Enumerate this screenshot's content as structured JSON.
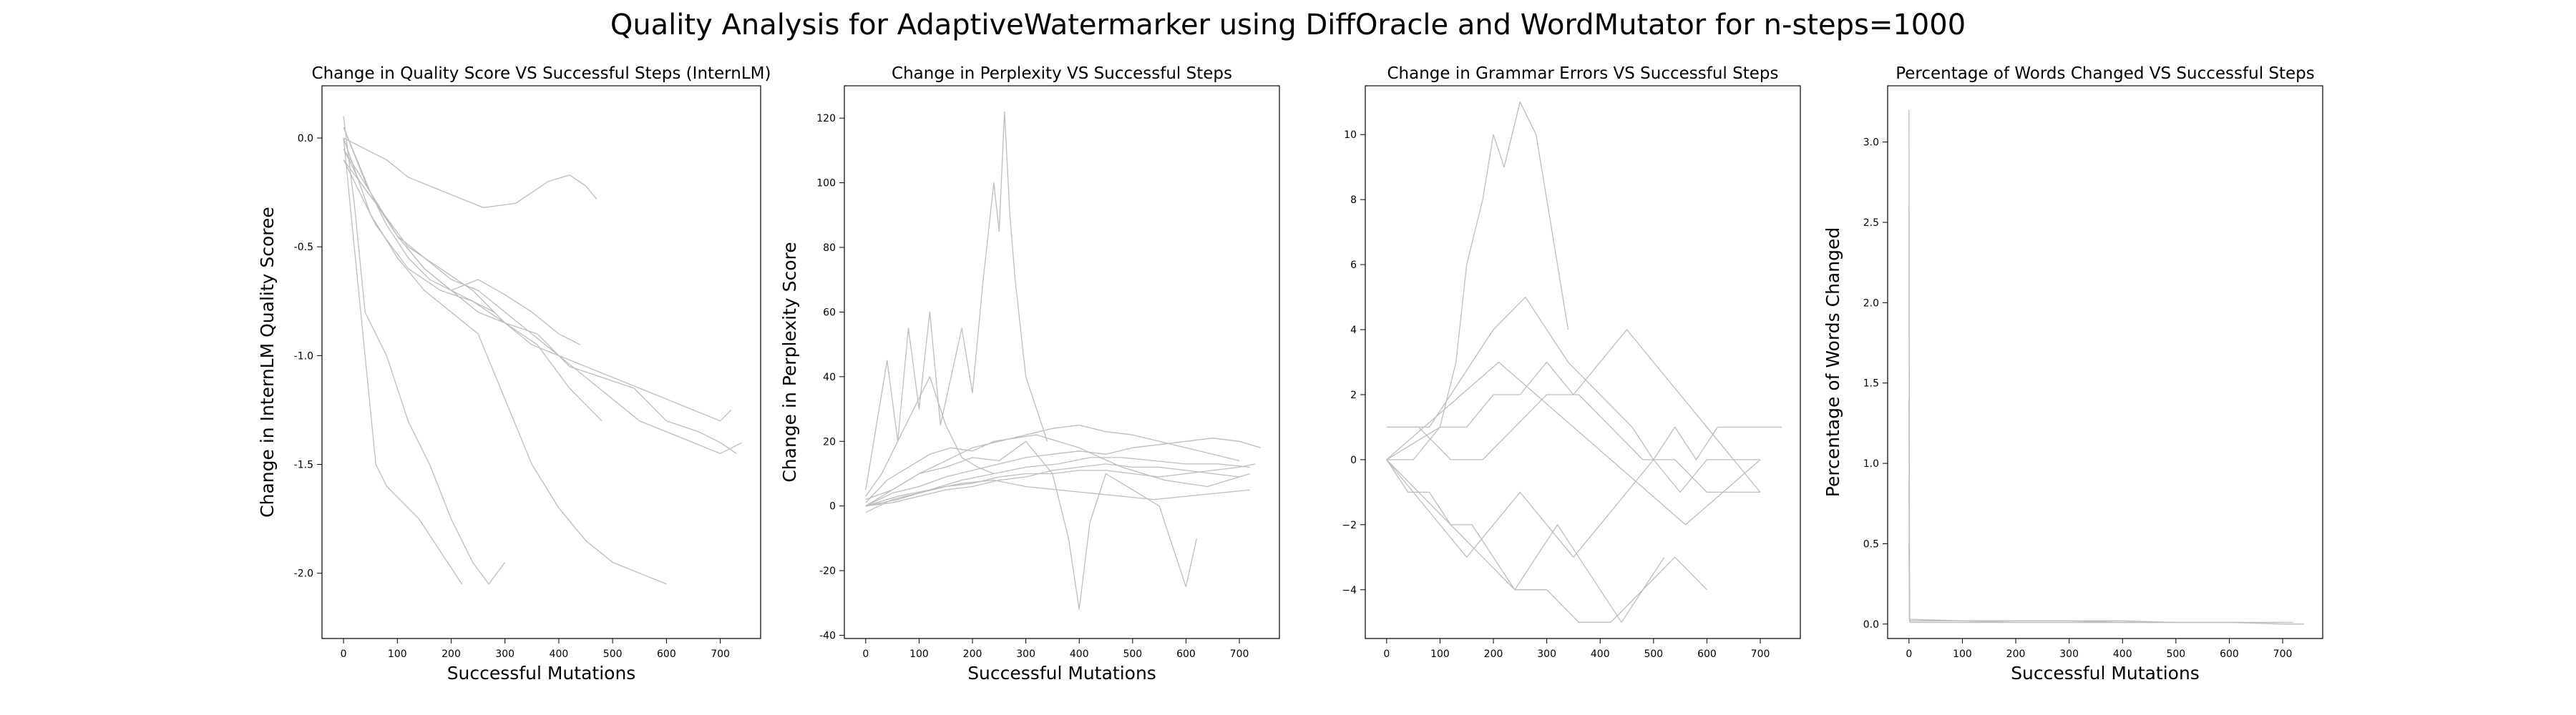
{
  "figure": {
    "suptitle": "Quality Analysis for AdaptiveWatermarker using DiffOracle and WordMutator for n-steps=1000",
    "line_color": "#bdbdbd"
  },
  "chart_data": [
    {
      "type": "line",
      "title": "Change in Quality Score VS Successful Steps (InternLM)",
      "xlabel": "Successful Mutations",
      "ylabel": "Change in InternLM Quality Scoree",
      "xlim": [
        -40,
        775
      ],
      "ylim": [
        -2.3,
        0.24
      ],
      "xticks": [
        0,
        100,
        200,
        300,
        400,
        500,
        600,
        700
      ],
      "yticks": [
        -2.0,
        -1.5,
        -1.0,
        -0.5,
        0.0
      ],
      "ytick_labels": [
        "-2.0",
        "-1.5",
        "-1.0",
        "-0.5",
        "0.0"
      ],
      "grid": false,
      "series": [
        {
          "x": [
            0,
            40,
            80,
            120,
            160,
            200,
            260,
            320,
            380,
            420,
            450,
            470
          ],
          "y": [
            0.0,
            -0.05,
            -0.1,
            -0.18,
            -0.22,
            -0.26,
            -0.32,
            -0.3,
            -0.2,
            -0.17,
            -0.22,
            -0.28
          ]
        },
        {
          "x": [
            0,
            30,
            60,
            100,
            150,
            200,
            250,
            300,
            350,
            400,
            440
          ],
          "y": [
            -0.05,
            -0.2,
            -0.3,
            -0.45,
            -0.6,
            -0.7,
            -0.65,
            -0.72,
            -0.8,
            -0.9,
            -0.95
          ]
        },
        {
          "x": [
            0,
            50,
            100,
            150,
            200,
            250,
            300,
            350,
            400,
            450,
            500,
            550,
            600,
            650,
            700,
            720
          ],
          "y": [
            0.05,
            -0.25,
            -0.45,
            -0.6,
            -0.7,
            -0.8,
            -0.85,
            -0.95,
            -1.0,
            -1.05,
            -1.1,
            -1.15,
            -1.2,
            -1.25,
            -1.3,
            -1.25
          ]
        },
        {
          "x": [
            0,
            20,
            40,
            80,
            120,
            160,
            200,
            240,
            270,
            300
          ],
          "y": [
            0.1,
            -0.3,
            -0.8,
            -1.0,
            -1.3,
            -1.5,
            -1.75,
            -1.95,
            -2.05,
            -1.95
          ]
        },
        {
          "x": [
            0,
            60,
            120,
            180,
            240,
            300,
            360,
            420,
            480,
            540,
            600,
            660,
            700,
            730
          ],
          "y": [
            -0.1,
            -0.4,
            -0.6,
            -0.7,
            -0.75,
            -0.85,
            -0.9,
            -1.05,
            -1.1,
            -1.15,
            -1.3,
            -1.35,
            -1.4,
            -1.45
          ]
        },
        {
          "x": [
            0,
            50,
            100,
            150,
            200,
            250,
            300,
            350,
            400,
            450,
            500,
            550,
            600
          ],
          "y": [
            0.0,
            -0.35,
            -0.55,
            -0.7,
            -0.8,
            -0.9,
            -1.2,
            -1.5,
            -1.7,
            -1.85,
            -1.95,
            -2.0,
            -2.05
          ]
        },
        {
          "x": [
            0,
            40,
            80,
            120,
            160,
            200,
            240,
            280
          ],
          "y": [
            0.05,
            -0.2,
            -0.4,
            -0.55,
            -0.65,
            -0.7,
            -0.75,
            -0.8
          ]
        },
        {
          "x": [
            0,
            20,
            40,
            60,
            80,
            100,
            140,
            180,
            220
          ],
          "y": [
            0.0,
            -0.5,
            -1.0,
            -1.5,
            -1.6,
            -1.65,
            -1.75,
            -1.9,
            -2.05
          ]
        },
        {
          "x": [
            0,
            50,
            100,
            150,
            200,
            250,
            300,
            350,
            400,
            450,
            500,
            550,
            600,
            650,
            700,
            740
          ],
          "y": [
            -0.05,
            -0.25,
            -0.45,
            -0.55,
            -0.65,
            -0.7,
            -0.8,
            -0.9,
            -1.0,
            -1.1,
            -1.2,
            -1.3,
            -1.35,
            -1.4,
            -1.45,
            -1.4
          ]
        },
        {
          "x": [
            0,
            60,
            120,
            180,
            240,
            300,
            360,
            420,
            480
          ],
          "y": [
            -0.1,
            -0.3,
            -0.5,
            -0.6,
            -0.7,
            -0.85,
            -0.95,
            -1.15,
            -1.3
          ]
        }
      ]
    },
    {
      "type": "line",
      "title": "Change in Perplexity VS Successful Steps",
      "xlabel": "Successful Mutations",
      "ylabel": "Change in Perplexity Score",
      "xlim": [
        -40,
        775
      ],
      "ylim": [
        -41,
        130
      ],
      "xticks": [
        0,
        100,
        200,
        300,
        400,
        500,
        600,
        700
      ],
      "yticks": [
        -40,
        -20,
        0,
        20,
        40,
        60,
        80,
        100,
        120
      ],
      "ytick_labels": [
        "-40",
        "-20",
        "0",
        "20",
        "40",
        "60",
        "80",
        "100",
        "120"
      ],
      "grid": false,
      "series": [
        {
          "x": [
            0,
            50,
            100,
            150,
            200,
            250,
            300,
            350,
            400,
            450,
            500,
            550,
            600,
            650,
            700,
            740
          ],
          "y": [
            0,
            4,
            6,
            9,
            11,
            13,
            15,
            16,
            17,
            16,
            18,
            19,
            20,
            21,
            20,
            18
          ]
        },
        {
          "x": [
            0,
            60,
            120,
            180,
            240,
            300,
            360,
            420,
            480,
            540,
            600,
            660,
            720
          ],
          "y": [
            0,
            3,
            5,
            8,
            10,
            12,
            13,
            15,
            15,
            14,
            13,
            13,
            12
          ]
        },
        {
          "x": [
            0,
            20,
            40,
            60,
            80,
            100,
            120,
            140,
            160,
            180,
            200,
            220,
            240,
            250,
            260,
            270,
            280,
            300,
            320,
            340
          ],
          "y": [
            5,
            25,
            45,
            20,
            55,
            30,
            60,
            25,
            40,
            55,
            35,
            70,
            100,
            85,
            122,
            90,
            70,
            40,
            30,
            20
          ]
        },
        {
          "x": [
            0,
            50,
            100,
            150,
            200,
            250,
            300,
            350,
            400,
            450,
            500,
            550,
            600,
            650,
            700
          ],
          "y": [
            2,
            5,
            10,
            14,
            18,
            20,
            22,
            24,
            25,
            23,
            22,
            20,
            18,
            16,
            14
          ]
        },
        {
          "x": [
            0,
            50,
            100,
            150,
            200,
            250,
            300,
            350,
            380,
            400,
            420,
            450,
            500,
            550,
            600,
            620
          ],
          "y": [
            0,
            5,
            10,
            12,
            15,
            14,
            20,
            10,
            -10,
            -32,
            -5,
            10,
            5,
            0,
            -25,
            -10
          ]
        },
        {
          "x": [
            0,
            50,
            100,
            150,
            200,
            250,
            300,
            350,
            400,
            450,
            500,
            550,
            600,
            650,
            700,
            730
          ],
          "y": [
            -2,
            2,
            4,
            6,
            7,
            9,
            10,
            10,
            11,
            11,
            10,
            9,
            10,
            11,
            12,
            13
          ]
        },
        {
          "x": [
            0,
            40,
            80,
            120,
            160,
            200,
            240,
            280,
            320,
            360,
            400,
            440,
            480,
            520,
            560,
            600,
            640,
            680,
            720
          ],
          "y": [
            1,
            8,
            12,
            16,
            18,
            17,
            20,
            21,
            22,
            20,
            18,
            15,
            12,
            10,
            8,
            7,
            6,
            8,
            10
          ]
        },
        {
          "x": [
            0,
            50,
            100,
            150,
            200,
            250,
            300,
            350,
            400,
            450,
            500,
            550,
            600,
            650,
            700
          ],
          "y": [
            0,
            1,
            3,
            5,
            6,
            8,
            9,
            11,
            12,
            13,
            12,
            12,
            11,
            10,
            9
          ]
        },
        {
          "x": [
            0,
            30,
            60,
            90,
            120,
            150,
            180,
            210,
            240
          ],
          "y": [
            3,
            10,
            20,
            30,
            40,
            25,
            15,
            12,
            10
          ]
        },
        {
          "x": [
            0,
            60,
            120,
            180,
            240,
            300,
            360,
            420,
            480,
            540,
            600,
            660,
            720
          ],
          "y": [
            0,
            2,
            5,
            7,
            8,
            6,
            5,
            4,
            3,
            2,
            3,
            4,
            5
          ]
        }
      ]
    },
    {
      "type": "line",
      "title": "Change in Grammar Errors VS Successful Steps",
      "xlabel": "",
      "ylabel": "",
      "xlim": [
        -40,
        775
      ],
      "ylim": [
        -5.5,
        11.5
      ],
      "xticks": [
        0,
        100,
        200,
        300,
        400,
        500,
        600,
        700
      ],
      "yticks": [
        -4,
        -2,
        0,
        2,
        4,
        6,
        8,
        10
      ],
      "ytick_labels": [
        "−4",
        "−2",
        "0",
        "2",
        "4",
        "6",
        "8",
        "10"
      ],
      "grid": false,
      "series": [
        {
          "x": [
            0,
            100,
            130,
            150,
            180,
            200,
            220,
            250,
            280,
            300,
            320,
            340
          ],
          "y": [
            0,
            1,
            3,
            6,
            8,
            10,
            9,
            11,
            10,
            8,
            6,
            4
          ]
        },
        {
          "x": [
            0,
            80,
            120,
            160,
            200,
            260,
            300,
            340,
            400,
            460,
            500,
            540,
            580,
            620,
            660,
            700,
            740
          ],
          "y": [
            1,
            1,
            2,
            3,
            4,
            5,
            4,
            3,
            2,
            1,
            0,
            1,
            0,
            1,
            1,
            1,
            1
          ]
        },
        {
          "x": [
            0,
            50,
            100,
            150,
            200,
            250,
            300,
            350,
            400,
            450,
            500,
            550,
            600,
            650,
            700
          ],
          "y": [
            0,
            -1,
            -2,
            -3,
            -2,
            -1,
            -2,
            -3,
            -2,
            -1,
            0,
            -1,
            0,
            0,
            0
          ]
        },
        {
          "x": [
            0,
            60,
            120,
            180,
            240,
            300,
            360,
            420,
            480,
            540,
            600
          ],
          "y": [
            0,
            -1,
            -2,
            -3,
            -4,
            -4,
            -5,
            -5,
            -4,
            -3,
            -4
          ]
        },
        {
          "x": [
            0,
            50,
            100,
            150,
            200,
            250,
            300,
            350,
            400,
            450,
            500,
            550,
            600,
            650,
            700
          ],
          "y": [
            0,
            0,
            1,
            1,
            2,
            2,
            3,
            2,
            3,
            4,
            3,
            2,
            1,
            0,
            -1
          ]
        },
        {
          "x": [
            0,
            40,
            80,
            120,
            160,
            200,
            240,
            280,
            320,
            360,
            400,
            440,
            480,
            520
          ],
          "y": [
            0,
            -1,
            -1,
            -2,
            -2,
            -3,
            -4,
            -3,
            -2,
            -3,
            -4,
            -5,
            -4,
            -3
          ]
        },
        {
          "x": [
            0,
            60,
            120,
            180,
            240,
            300,
            360,
            420,
            480,
            540,
            600,
            660,
            700
          ],
          "y": [
            1,
            1,
            0,
            0,
            1,
            2,
            2,
            1,
            0,
            0,
            -1,
            -1,
            -1
          ]
        },
        {
          "x": [
            0,
            70,
            140,
            210,
            280,
            350,
            420,
            490,
            560,
            630,
            700
          ],
          "y": [
            0,
            1,
            2,
            3,
            2,
            1,
            0,
            -1,
            -2,
            -1,
            0
          ]
        }
      ]
    },
    {
      "type": "line",
      "title": "Percentage of Words Changed VS Successful Steps",
      "xlabel": "Successful Mutations",
      "ylabel": "Percentage of Words Changed",
      "xlim": [
        -40,
        775
      ],
      "ylim": [
        -0.09,
        3.35
      ],
      "xticks": [
        0,
        100,
        200,
        300,
        400,
        500,
        600,
        700
      ],
      "yticks": [
        0.0,
        0.5,
        1.0,
        1.5,
        2.0,
        2.5,
        3.0
      ],
      "ytick_labels": [
        "0.0",
        "0.5",
        "1.0",
        "1.5",
        "2.0",
        "2.5",
        "3.0"
      ],
      "grid": false,
      "series": [
        {
          "x": [
            0,
            1,
            2,
            50,
            100,
            200,
            300,
            400,
            500,
            600,
            700,
            740
          ],
          "y": [
            3.2,
            0.02,
            0.01,
            0.01,
            0.01,
            0.01,
            0.01,
            0.01,
            0.01,
            0.01,
            0.0,
            0.0
          ]
        },
        {
          "x": [
            0,
            1,
            2,
            100,
            200,
            300,
            400,
            500,
            600,
            630
          ],
          "y": [
            2.6,
            0.02,
            0.01,
            0.01,
            0.01,
            0.01,
            0.01,
            0.01,
            0.01,
            0.01
          ]
        },
        {
          "x": [
            0,
            1,
            2,
            100,
            200,
            300,
            400,
            500,
            600,
            700
          ],
          "y": [
            1.4,
            0.03,
            0.02,
            0.02,
            0.02,
            0.02,
            0.02,
            0.01,
            0.01,
            0.01
          ]
        },
        {
          "x": [
            0,
            1,
            2,
            100,
            200,
            300,
            400,
            500,
            600,
            720
          ],
          "y": [
            0.9,
            0.02,
            0.02,
            0.02,
            0.01,
            0.01,
            0.01,
            0.01,
            0.01,
            0.01
          ]
        },
        {
          "x": [
            0,
            1,
            100,
            200,
            300,
            400,
            500
          ],
          "y": [
            0.5,
            0.03,
            0.02,
            0.02,
            0.02,
            0.01,
            0.01
          ]
        }
      ]
    }
  ]
}
